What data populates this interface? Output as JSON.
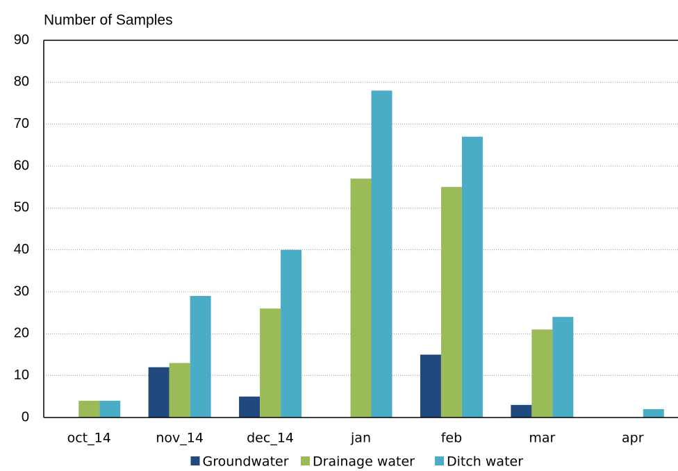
{
  "chart_data": {
    "type": "bar",
    "title": "Number of Samples",
    "categories": [
      "oct_14",
      "nov_14",
      "dec_14",
      "jan",
      "feb",
      "mar",
      "apr"
    ],
    "series": [
      {
        "name": "Groundwater",
        "color": "#22497d",
        "values": [
          0,
          12,
          5,
          0,
          15,
          3,
          0
        ]
      },
      {
        "name": "Drainage water",
        "color": "#9bbb59",
        "values": [
          4,
          13,
          26,
          57,
          55,
          21,
          0
        ]
      },
      {
        "name": "Ditch water",
        "color": "#4bacc6",
        "values": [
          4,
          29,
          40,
          78,
          67,
          24,
          2
        ]
      }
    ],
    "ylim": [
      0,
      90
    ],
    "yticks": [
      0,
      10,
      20,
      30,
      40,
      50,
      60,
      70,
      80,
      90
    ],
    "grid": true,
    "legend": "bottom"
  }
}
